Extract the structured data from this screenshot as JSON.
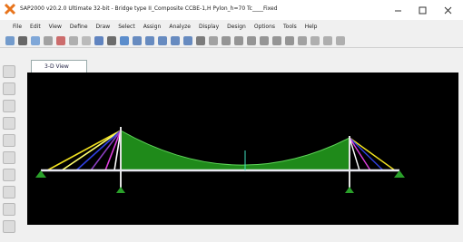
{
  "window": {
    "title": "SAP2000 v20.2.0 Ultimate 32-bit - Bridge type II_Composite CCBE-1,H Pylon_h=70 Tc____Fixed"
  },
  "menu": [
    "File",
    "Edit",
    "View",
    "Define",
    "Draw",
    "Select",
    "Assign",
    "Analyze",
    "Display",
    "Design",
    "Options",
    "Tools",
    "Help"
  ],
  "tabs": [
    "3-D View"
  ]
}
